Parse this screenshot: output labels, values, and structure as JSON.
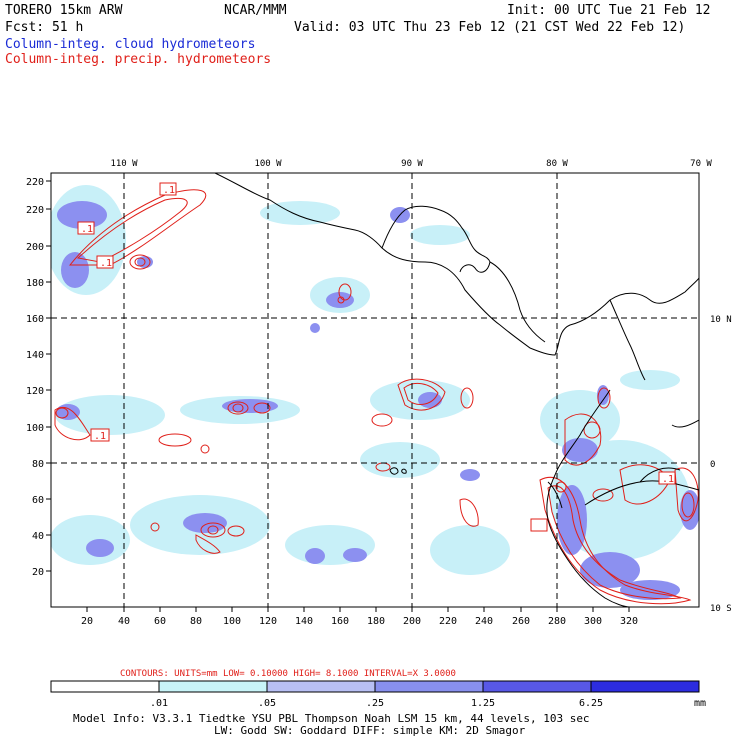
{
  "header": {
    "model": "TORERO  15km ARW",
    "org": "NCAR/MMM",
    "init": "Init: 00 UTC Tue 21 Feb 12",
    "fcst": "Fcst:   51 h",
    "valid": "Valid: 03 UTC Thu 23 Feb 12 (21 CST Wed 22 Feb 12)",
    "field1": "Column-integ. cloud hydrometeors",
    "field2": "Column-integ. precip. hydrometeors"
  },
  "map": {
    "lon_labels": [
      "110 W",
      "100 W",
      "90 W",
      "80 W",
      "70 W"
    ],
    "lat_labels": [
      "10 N",
      "0",
      "10 S"
    ],
    "x_ticks": [
      "20",
      "40",
      "60",
      "80",
      "100",
      "120",
      "140",
      "160",
      "180",
      "200",
      "220",
      "240",
      "260",
      "280",
      "300",
      "320"
    ],
    "y_ticks": [
      "20",
      "40",
      "60",
      "80",
      "100",
      "120",
      "140",
      "160",
      "180",
      "200",
      "220"
    ],
    "contour_labels": [
      ".1",
      ".1",
      ".1",
      ".1",
      ".1"
    ],
    "colors": {
      "coast": "#000000",
      "cloud": "#8c90f0",
      "cloud_light": "#c8f0f8",
      "precip": "#e0201a"
    }
  },
  "contour_info": {
    "text": "CONTOURS:  UNITS=mm  LOW= 0.10000      HIGH=  8.1000      INTERVAL=X  3.0000"
  },
  "colorbar": {
    "labels": [
      ".01",
      ".05",
      ".25",
      "1.25",
      "6.25"
    ],
    "units": "mm",
    "colors": [
      "#ffffff",
      "#c8f4f8",
      "#b8c0f4",
      "#8890ee",
      "#5858e6",
      "#2c2ce0"
    ]
  },
  "footer": {
    "line1": "Model Info: V3.3.1   Tiedtke YSU PBL  Thompson    Noah LSM  15 km,   44 levels,  103 sec",
    "line2": "LW: Godd SW: Goddard DIFF: simple KM: 2D Smagor"
  }
}
